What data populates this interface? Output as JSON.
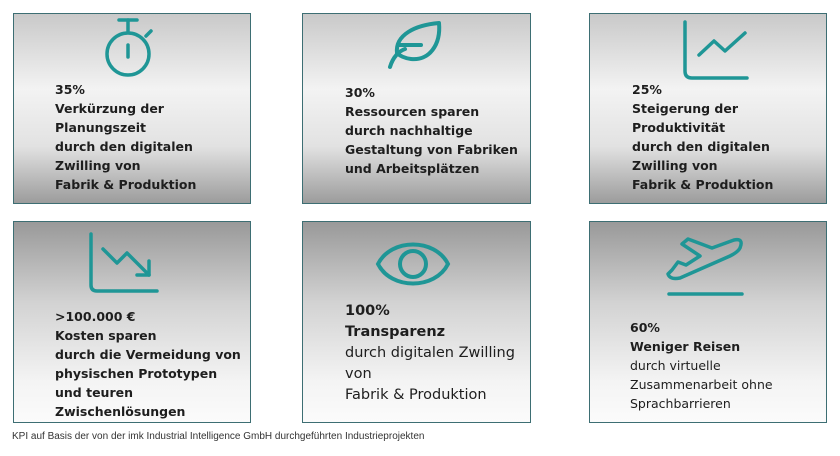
{
  "accent_color": "#1f9696",
  "cards": [
    {
      "icon": "stopwatch-icon",
      "value": "35%",
      "lines": [
        "Verkürzung der",
        "Planungszeit",
        "durch den digitalen",
        "Zwilling von",
        "Fabrik & Produktion"
      ]
    },
    {
      "icon": "leaf-icon",
      "value": "30%",
      "lines": [
        "Ressourcen sparen",
        "durch nachhaltige",
        "Gestaltung von Fabriken",
        "und Arbeitsplätzen"
      ]
    },
    {
      "icon": "chart-up-icon",
      "value": "25%",
      "lines": [
        "Steigerung der",
        "Produktivität",
        "durch den digitalen",
        "Zwilling von",
        "Fabrik & Produktion"
      ]
    },
    {
      "icon": "chart-down-icon",
      "value": ">100.000 €",
      "lines": [
        "Kosten sparen",
        "durch die Vermeidung von",
        "physischen Prototypen",
        "und teuren",
        "Zwischenlösungen"
      ]
    },
    {
      "icon": "eye-icon",
      "value": "100%",
      "lines": [
        "Transparenz",
        "durch digitalen Zwilling",
        "von",
        "Fabrik & Produktion"
      ]
    },
    {
      "icon": "airplane-takeoff-icon",
      "value": "60%",
      "lines": [
        "Weniger Reisen",
        "durch virtuelle",
        "Zusammenarbeit ohne",
        "Sprachbarrieren"
      ]
    }
  ],
  "footer": "KPI auf Basis der von der imk Industrial Intelligence GmbH durchgeführten Industrieprojekten"
}
